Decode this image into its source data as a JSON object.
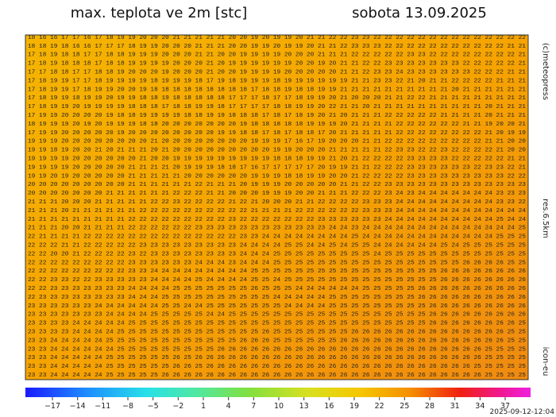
{
  "header": {
    "title": "max. teplota ve 2m [stc]",
    "date": "sobota 13.09.2025"
  },
  "side_labels": {
    "copyright": "(c)meteopress",
    "resolution": "res.6.5km",
    "model": "icon-eu"
  },
  "timestamp": "2025-09-12-12:04",
  "colorbar_labels": [
    "−17",
    "−14",
    "−11",
    "−8",
    "−5",
    "−2",
    "1",
    "4",
    "7",
    "10",
    "13",
    "16",
    "19",
    "22",
    "25",
    "28",
    "31",
    "34",
    "37"
  ],
  "grid": {
    "rows": [
      "18 16 16 17 17 16 17 18 19 19 20 20 20 21 21 21 21 21 20 20 19 20 19 19 20 21 21 22 22 23 23 22 22 22 22 22 22 22 22 22 22 22 22 22 22",
      "18 18 19 18 16 16 17 17 17 18 19 19 20 20 20 21 21 21 20 20 19 19 20 19 19 20 21 21 22 23 23 23 22 22 22 22 22 22 22 22 22 22 22 21 21",
      "17 18 19 18 18 17 17 18 18 19 19 19 20 20 20 21 21 20 20 19 19 19 19 20 20 20 21 21 21 22 22 22 22 22 23 23 22 22 22 22 22 22 22 22 21",
      "17 18 19 18 18 18 17 18 18 19 19 19 19 20 20 20 21 20 19 19 19 19 19 19 20 20 19 20 21 21 22 22 23 23 23 23 23 23 23 22 22 22 22 22 21",
      "17 17 18 18 17 17 18 18 19 20 20 20 19 20 20 20 21 20 20 19 19 19 19 20 20 20 20 20 21 21 22 23 23 24 23 23 23 23 23 23 22 22 22 21 21",
      "17 18 19 19 17 17 18 19 19 19 19 18 19 19 19 18 17 19 18 19 19 19 18 19 19 19 19 19 19 21 21 23 23 22 21 20 21 21 22 22 22 22 21 21 21",
      "17 18 19 19 17 18 19 19 20 20 19 18 18 18 18 18 18 18 18 18 17 18 18 19 18 18 19 19 21 21 21 21 21 21 21 21 21 21 20 21 21 21 21 21 21",
      "17 18 19 19 18 19 19 20 19 19 18 18 19 18 18 18 18 18 17 17 17 18 17 17 18 19 19 20 21 20 20 20 21 21 22 22 21 21 21 21 21 21 21 21 21",
      "17 18 19 19 20 19 19 19 19 18 18 18 17 18 18 19 19 18 17 17 17 17 18 18 19 19 20 22 21 21 20 21 21 21 21 21 21 21 21 21 21 20 21 21 21",
      "17 19 19 20 20 20 20 19 18 18 19 19 19 19 18 18 19 19 18 18 18 17 18 17 18 19 20 21 20 21 21 21 22 22 22 22 22 21 21 21 21 20 21 21 21",
      "18 19 19 19 20 19 20 19 19 19 18 18 20 20 20 20 20 20 20 19 18 18 18 18 18 19 19 19 20 21 21 21 21 22 22 22 22 22 22 21 21 19 20 20 21",
      "17 19 19 20 20 20 20 20 19 20 20 20 20 20 20 20 20 19 19 18 18 17 18 17 18 18 17 20 21 21 21 21 21 22 22 22 22 22 22 22 22 21 20 19 19",
      "19 19 19 20 20 20 20 20 20 20 20 21 20 20 20 20 20 20 20 20 19 19 19 17 16 17 19 20 20 20 21 21 22 22 22 22 22 22 22 22 22 21 21 20 20",
      "19 19 18 19 20 20 21 20 21 21 21 20 21 20 20 20 20 20 20 20 20 20 19 19 20 20 20 21 21 21 21 21 22 23 23 22 22 23 22 22 22 22 21 20 20",
      "19 19 19 19 20 20 20 20 20 20 21 20 20 19 19 19 19 19 19 19 19 19 18 18 18 19 19 21 20 21 22 22 22 22 23 23 23 23 22 22 22 22 22 21 21",
      "19 19 19 19 20 20 20 20 20 21 21 21 21 20 19 19 19 18 18 17 16 17 17 17 17 17 20 19 19 21 21 22 22 22 23 23 23 23 23 23 22 23 23 22 21",
      "19 19 20 19 20 20 20 20 20 21 21 21 21 21 20 20 20 20 20 20 19 19 19 18 18 19 19 20 20 21 22 22 22 22 23 23 23 23 23 23 23 23 23 22 22",
      "20 20 20 20 20 20 20 20 20 21 21 21 21 21 21 22 21 21 21 20 19 19 19 20 20 20 20 20 21 21 22 22 23 23 23 23 23 23 23 23 23 23 23 23 23",
      "20 20 20 20 20 20 20 21 21 21 21 21 21 22 22 22 21 21 20 20 20 19 19 19 20 20 21 21 21 22 22 22 23 24 23 24 24 24 24 24 24 24 23 23 23",
      "21 21 21 20 20 20 21 21 21 21 21 22 22 23 22 22 22 22 21 22 21 20 20 20 21 21 22 22 22 22 23 23 23 24 24 24 24 24 24 24 24 24 23 23 22",
      "21 21 21 20 21 21 21 21 21 21 22 22 22 22 22 22 22 22 22 22 21 21 21 21 22 22 22 22 22 22 23 23 23 24 24 24 24 24 24 24 24 24 24 24 24",
      "21 21 21 21 21 21 21 21 21 22 22 22 22 22 22 22 22 22 23 22 22 22 22 22 22 22 23 23 23 23 23 23 24 24 24 24 24 24 24 24 24 24 25 24 24",
      "21 21 21 20 20 21 21 21 21 22 22 22 22 22 22 23 23 23 23 23 23 23 23 23 23 23 23 24 24 23 24 24 24 24 24 24 24 24 24 24 24 24 24 24 25",
      "22 21 21 21 21 22 22 22 22 22 22 22 22 22 22 22 22 22 22 23 23 24 24 24 24 24 24 24 24 25 24 24 24 24 24 24 24 24 24 24 24 24 25 25 25",
      "22 22 22 21 21 22 22 22 22 22 23 23 23 23 23 23 23 23 23 24 24 24 24 25 25 24 24 25 24 25 25 24 24 24 24 24 24 25 24 25 25 25 25 25 25",
      "22 22 20 20 21 22 22 22 22 23 22 23 23 23 23 23 23 23 23 24 24 24 25 25 25 25 25 25 25 25 25 24 25 25 25 25 25 25 25 25 25 25 25 25 25",
      "22 22 22 22 22 22 22 22 22 23 23 23 23 23 23 24 24 24 23 24 24 24 25 25 25 25 25 25 25 25 25 25 25 25 25 25 25 25 25 26 26 26 26 25 25",
      "22 22 22 22 22 22 22 22 22 23 23 24 24 24 24 24 24 24 24 24 25 25 25 25 25 25 25 25 25 25 25 25 25 25 25 25 25 26 26 26 26 26 26 26 26",
      "22 22 23 23 22 22 23 23 23 23 23 24 24 24 24 25 24 24 24 24 25 25 24 25 25 25 25 25 25 25 25 25 25 25 25 25 25 26 26 26 26 26 26 26 26",
      "22 22 23 23 23 23 23 23 23 24 24 24 24 25 25 25 25 25 25 25 26 25 25 25 24 24 24 24 24 24 25 25 25 25 25 26 26 26 26 26 26 26 26 26 26",
      "22 23 23 23 23 23 23 23 23 24 24 24 25 25 25 25 25 25 25 25 25 25 24 24 24 24 24 25 25 25 25 25 25 25 25 26 26 26 26 26 26 26 26 26 26",
      "23 23 23 23 23 23 24 24 24 24 24 24 25 25 24 24 25 25 25 25 25 25 25 24 24 24 24 25 25 25 25 25 25 25 25 25 26 26 26 26 26 26 26 26 26",
      "23 23 23 23 23 23 23 24 24 24 24 25 25 25 25 25 24 24 25 25 25 25 25 25 25 25 25 25 25 25 25 25 25 25 25 25 26 26 26 26 26 26 26 26 26",
      "23 23 23 23 24 24 24 24 24 25 25 25 25 25 25 25 25 25 25 25 25 25 25 25 25 25 25 25 25 25 25 25 25 25 25 25 26 26 26 26 26 26 26 26 25",
      "23 23 23 23 24 24 24 24 25 25 25 25 25 25 25 25 25 25 25 25 25 26 25 25 25 25 25 25 25 26 26 26 26 26 26 26 26 26 26 26 26 26 26 25 25",
      "23 23 24 24 24 24 24 25 25 25 25 25 25 25 25 25 25 25 25 26 26 26 25 25 25 25 25 25 26 26 26 26 26 26 26 26 26 26 26 26 26 26 26 25 25",
      "23 23 24 24 24 24 24 24 25 25 25 25 25 25 25 25 25 26 26 26 26 26 26 26 26 26 26 26 26 26 26 26 26 26 26 26 26 26 26 26 26 25 25 25 25",
      "23 23 24 24 24 24 24 25 25 25 25 25 25 26 25 26 26 26 26 26 26 26 26 26 26 26 26 26 26 26 26 26 26 26 26 26 26 26 26 26 26 25 25 25 25",
      "23 23 24 24 24 24 24 25 25 25 25 25 25 26 26 25 26 26 26 26 26 26 26 26 26 26 26 26 26 26 26 26 26 26 26 26 26 26 26 26 25 25 25 25 25",
      "23 23 24 24 24 24 24 25 25 25 25 25 26 26 26 26 26 26 26 26 26 26 26 26 26 26 26 26 26 26 26 26 26 26 26 26 26 26 26 26 26 25 25 25 25"
    ]
  }
}
